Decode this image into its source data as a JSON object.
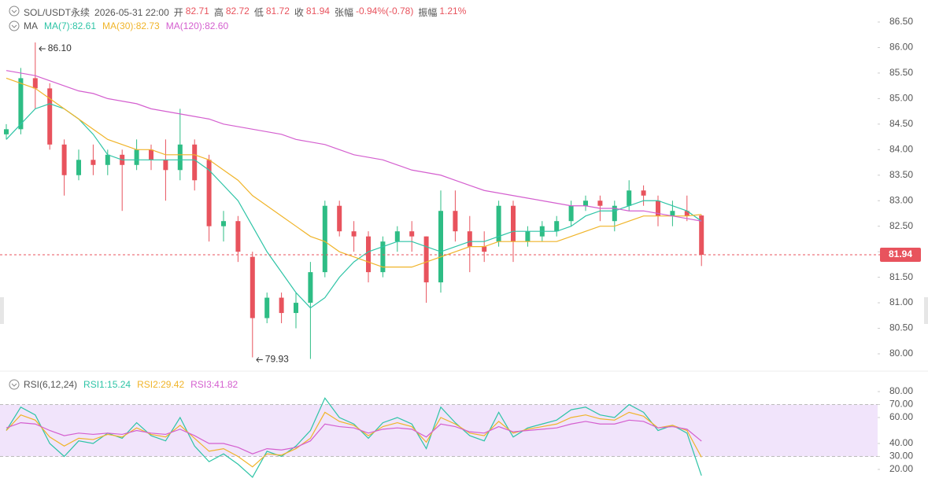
{
  "header": {
    "symbol": "SOL/USDT永续",
    "time": "2026-05-31 22:00",
    "fields": [
      {
        "label": "开",
        "value": "82.71"
      },
      {
        "label": "高",
        "value": "82.72"
      },
      {
        "label": "低",
        "value": "81.72"
      },
      {
        "label": "收",
        "value": "81.94"
      },
      {
        "label": "张幅",
        "value": "-0.94%(-0.78)"
      },
      {
        "label": "振幅",
        "value": "1.21%"
      }
    ]
  },
  "chart_data": [
    {
      "type": "candlestick",
      "indicator": "MA",
      "up_color": "#2ebd85",
      "down_color": "#e8535d",
      "open": [
        84.3,
        84.4,
        85.4,
        85.2,
        84.1,
        83.5,
        83.8,
        83.7,
        83.9,
        83.7,
        84.0,
        83.8,
        83.6,
        84.1,
        83.8,
        82.5,
        82.6,
        81.9,
        80.7,
        81.1,
        80.8,
        81.0,
        81.6,
        82.9,
        82.4,
        82.3,
        81.6,
        82.2,
        82.4,
        82.3,
        81.4,
        82.8,
        82.4,
        82.1,
        82.2,
        82.9,
        82.2,
        82.3,
        82.4,
        82.6,
        82.9,
        83.0,
        82.6,
        82.9,
        83.2,
        83.0,
        82.7,
        82.8,
        82.71
      ],
      "high": [
        84.5,
        85.6,
        86.1,
        85.3,
        84.2,
        84.0,
        84.1,
        84.0,
        84.0,
        84.2,
        84.1,
        84.2,
        84.8,
        84.2,
        83.9,
        82.8,
        82.7,
        82.0,
        81.2,
        81.2,
        81.2,
        81.8,
        83.0,
        83.0,
        82.6,
        82.4,
        82.3,
        82.5,
        82.6,
        82.3,
        83.2,
        83.2,
        82.7,
        82.4,
        83.0,
        83.0,
        82.5,
        82.6,
        82.7,
        83.0,
        83.1,
        83.1,
        83.0,
        83.4,
        83.3,
        83.1,
        83.0,
        83.1,
        82.72
      ],
      "low": [
        84.2,
        84.3,
        84.8,
        84.0,
        83.1,
        83.4,
        83.5,
        83.5,
        82.8,
        83.6,
        83.6,
        83.0,
        83.4,
        83.2,
        82.2,
        82.2,
        81.8,
        79.93,
        80.6,
        80.6,
        80.5,
        79.9,
        81.5,
        82.3,
        82.0,
        81.4,
        81.5,
        82.0,
        82.0,
        81.0,
        81.2,
        82.2,
        81.6,
        81.8,
        82.1,
        81.8,
        82.1,
        82.2,
        82.3,
        82.5,
        82.8,
        82.6,
        82.4,
        82.8,
        82.9,
        82.5,
        82.5,
        82.6,
        81.72
      ],
      "close": [
        84.4,
        85.4,
        85.2,
        84.1,
        83.5,
        83.8,
        83.7,
        83.9,
        83.7,
        84.0,
        83.8,
        83.6,
        84.1,
        83.4,
        82.5,
        82.6,
        82.0,
        80.7,
        81.1,
        80.8,
        81.0,
        81.6,
        82.9,
        82.4,
        82.3,
        81.6,
        82.2,
        82.4,
        82.3,
        81.4,
        82.8,
        82.4,
        82.1,
        82.0,
        82.9,
        82.2,
        82.4,
        82.5,
        82.6,
        82.9,
        83.0,
        82.9,
        82.9,
        83.2,
        83.1,
        82.7,
        82.8,
        82.7,
        81.94
      ],
      "series": [
        {
          "name": "MA(7):82.61",
          "color": "#2ec4a6",
          "values": [
            84.2,
            84.5,
            84.8,
            84.9,
            84.8,
            84.6,
            84.3,
            83.9,
            83.8,
            83.8,
            83.8,
            83.8,
            83.8,
            83.8,
            83.6,
            83.3,
            83.0,
            82.5,
            82.0,
            81.6,
            81.2,
            80.9,
            81.1,
            81.5,
            81.8,
            82.0,
            82.1,
            82.2,
            82.2,
            82.1,
            82.0,
            82.1,
            82.2,
            82.2,
            82.3,
            82.4,
            82.4,
            82.4,
            82.4,
            82.5,
            82.7,
            82.8,
            82.8,
            82.9,
            83.0,
            83.0,
            82.9,
            82.8,
            82.6
          ]
        },
        {
          "name": "MA(30):82.73",
          "color": "#f0b429",
          "values": [
            85.4,
            85.3,
            85.2,
            85.0,
            84.8,
            84.6,
            84.4,
            84.2,
            84.1,
            84.0,
            84.0,
            83.9,
            83.9,
            83.9,
            83.8,
            83.6,
            83.4,
            83.1,
            82.9,
            82.7,
            82.5,
            82.3,
            82.2,
            82.0,
            81.9,
            81.8,
            81.7,
            81.7,
            81.7,
            81.8,
            81.9,
            82.0,
            82.1,
            82.1,
            82.2,
            82.2,
            82.2,
            82.2,
            82.2,
            82.3,
            82.4,
            82.5,
            82.5,
            82.6,
            82.7,
            82.7,
            82.7,
            82.7,
            82.73
          ]
        },
        {
          "name": "MA(120):82.60",
          "color": "#d45fcf",
          "values": [
            85.55,
            85.5,
            85.45,
            85.35,
            85.25,
            85.15,
            85.1,
            85.0,
            84.95,
            84.9,
            84.8,
            84.75,
            84.7,
            84.65,
            84.6,
            84.5,
            84.45,
            84.4,
            84.35,
            84.3,
            84.2,
            84.15,
            84.1,
            84.0,
            83.9,
            83.85,
            83.8,
            83.7,
            83.6,
            83.55,
            83.5,
            83.4,
            83.3,
            83.2,
            83.15,
            83.1,
            83.05,
            83.0,
            82.95,
            82.9,
            82.9,
            82.85,
            82.85,
            82.8,
            82.8,
            82.75,
            82.7,
            82.65,
            82.6
          ]
        }
      ],
      "ylim": [
        80,
        86.5
      ],
      "yticks": [
        {
          "value": 86.5,
          "label": "86.50"
        },
        {
          "value": 86,
          "label": "86.00"
        },
        {
          "value": 85.5,
          "label": "85.50"
        },
        {
          "value": 85,
          "label": "85.00"
        },
        {
          "value": 84.5,
          "label": "84.50"
        },
        {
          "value": 84,
          "label": "84.00"
        },
        {
          "value": 83.5,
          "label": "83.50"
        },
        {
          "value": 83,
          "label": "83.00"
        },
        {
          "value": 82.5,
          "label": "82.50"
        },
        {
          "value": 82,
          "label": "82.00"
        },
        {
          "value": 81.5,
          "label": "81.50"
        },
        {
          "value": 81,
          "label": "81.00"
        },
        {
          "value": 80.5,
          "label": "80.50"
        },
        {
          "value": 80,
          "label": "80.00"
        }
      ],
      "last_price": {
        "value": 81.94,
        "label": "81.94"
      },
      "annotations": [
        {
          "value": 86.1,
          "label": "86.10"
        },
        {
          "value": 79.93,
          "label": "79.93"
        }
      ]
    },
    {
      "type": "line",
      "indicator": "RSI(6,12,24)",
      "band": [
        30,
        70
      ],
      "series": [
        {
          "name": "RSI1:15.24",
          "color": "#2ec4a6",
          "values": [
            50,
            68,
            62,
            40,
            30,
            42,
            40,
            48,
            44,
            56,
            46,
            42,
            60,
            38,
            26,
            32,
            24,
            14,
            34,
            30,
            38,
            50,
            75,
            60,
            55,
            44,
            56,
            60,
            55,
            36,
            68,
            56,
            46,
            42,
            64,
            45,
            52,
            55,
            58,
            66,
            68,
            62,
            60,
            70,
            64,
            50,
            54,
            48,
            15.24
          ]
        },
        {
          "name": "RSI2:29.42",
          "color": "#f0b429",
          "values": [
            50,
            62,
            58,
            45,
            38,
            44,
            43,
            47,
            45,
            52,
            47,
            45,
            54,
            44,
            34,
            36,
            30,
            22,
            32,
            31,
            36,
            44,
            64,
            57,
            54,
            46,
            53,
            56,
            53,
            41,
            60,
            55,
            48,
            46,
            57,
            48,
            51,
            53,
            55,
            60,
            62,
            59,
            58,
            64,
            61,
            52,
            54,
            50,
            29.42
          ]
        },
        {
          "name": "RSI3:41.82",
          "color": "#d45fcf",
          "values": [
            52,
            56,
            55,
            50,
            46,
            48,
            47,
            48,
            47,
            50,
            48,
            47,
            51,
            46,
            40,
            40,
            37,
            32,
            36,
            35,
            37,
            42,
            55,
            53,
            52,
            48,
            51,
            52,
            51,
            45,
            55,
            53,
            49,
            48,
            53,
            49,
            50,
            51,
            52,
            55,
            57,
            55,
            55,
            58,
            57,
            52,
            53,
            51,
            41.82
          ]
        }
      ],
      "ylim": [
        20,
        80
      ],
      "yticks": [
        {
          "value": 80,
          "label": "80.00"
        },
        {
          "value": 70,
          "label": "70.00"
        },
        {
          "value": 60,
          "label": "60.00"
        },
        {
          "value": 40,
          "label": "40.00"
        },
        {
          "value": 30,
          "label": "30.00"
        },
        {
          "value": 20,
          "label": "20.00"
        }
      ]
    }
  ]
}
